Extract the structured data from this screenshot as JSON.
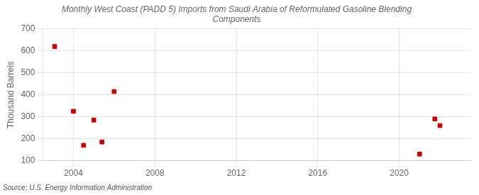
{
  "chart_data": {
    "type": "scatter",
    "title": "Monthly West Coast (PADD 5) Imports from Saudi Arabia of Reformulated Gasoline Blending\nComponents",
    "ylabel": "Thousand Barrels",
    "annotation": "Source: U.S. Energy Information Administration",
    "x": [
      2003.08,
      2004.0,
      2004.5,
      2005.0,
      2005.4,
      2006.0,
      2021.0,
      2021.75,
      2022.0
    ],
    "values": [
      620,
      325,
      170,
      285,
      185,
      415,
      130,
      290,
      260
    ],
    "color": "#cc0000",
    "marker": "square",
    "xlim": [
      2002.5,
      2023.5
    ],
    "xticks": [
      2004,
      2008,
      2012,
      2016,
      2020
    ],
    "ylim": [
      100,
      700
    ],
    "yticks": [
      100,
      200,
      300,
      400,
      500,
      600,
      700
    ],
    "grid": true
  }
}
